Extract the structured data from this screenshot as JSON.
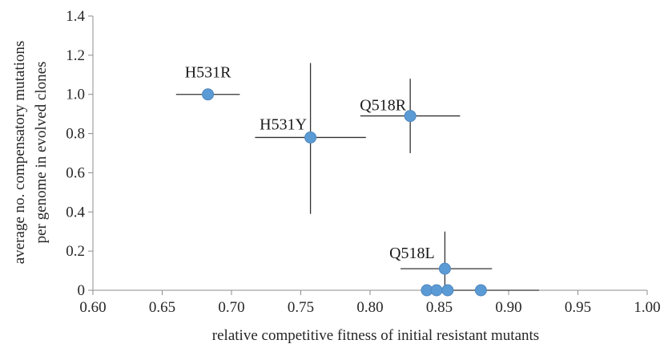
{
  "chart_data": {
    "type": "scatter",
    "xlabel": "relative competitive fitness of initial resistant mutants",
    "ylabel_lines": [
      "average no. compensatory mutations",
      "per genome in evolved clones"
    ],
    "xlim": [
      0.6,
      1.0
    ],
    "ylim": [
      0,
      1.4
    ],
    "x_ticks": [
      "0.60",
      "0.65",
      "0.70",
      "0.75",
      "0.80",
      "0.85",
      "0.90",
      "0.95",
      "1.00"
    ],
    "y_ticks": [
      "0",
      "0.2",
      "0.4",
      "0.6",
      "0.8",
      "1.0",
      "1.2",
      "1.4"
    ],
    "grid": false,
    "legend": "none",
    "marker_color": "#5b9bd5",
    "error_bar_color": "#333333",
    "points": [
      {
        "label": "H531R",
        "x": 0.683,
        "y": 1.0,
        "x_err": [
          0.66,
          0.706
        ],
        "y_err": null
      },
      {
        "label": "H531Y",
        "x": 0.757,
        "y": 0.78,
        "x_err": [
          0.717,
          0.797
        ],
        "y_err": [
          0.39,
          1.16
        ]
      },
      {
        "label": "Q518R",
        "x": 0.829,
        "y": 0.89,
        "x_err": [
          0.793,
          0.865
        ],
        "y_err": [
          0.7,
          1.08
        ]
      },
      {
        "label": "Q518L",
        "x": 0.854,
        "y": 0.11,
        "x_err": [
          0.822,
          0.888
        ],
        "y_err": [
          0.0,
          0.3
        ]
      },
      {
        "label": "",
        "x": 0.841,
        "y": 0.0,
        "x_err": null,
        "y_err": null
      },
      {
        "label": "",
        "x": 0.848,
        "y": 0.0,
        "x_err": null,
        "y_err": null
      },
      {
        "label": "",
        "x": 0.856,
        "y": 0.0,
        "x_err": null,
        "y_err": null
      },
      {
        "label": "",
        "x": 0.88,
        "y": 0.0,
        "x_err": [
          0.838,
          0.922
        ],
        "y_err": null
      }
    ]
  }
}
